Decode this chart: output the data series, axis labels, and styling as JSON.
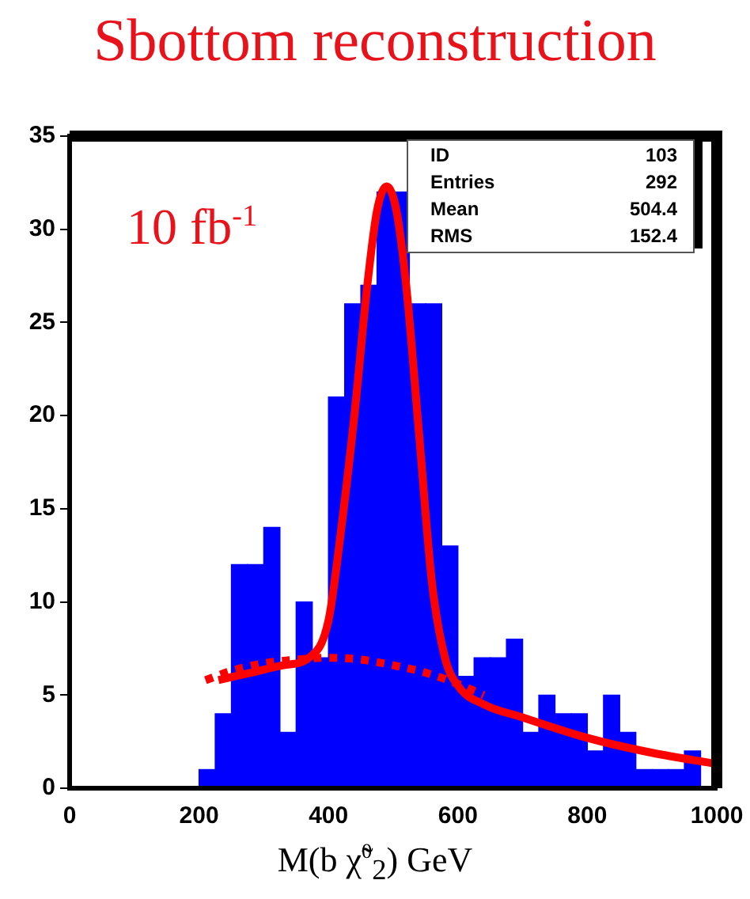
{
  "chart_data": {
    "type": "histogram",
    "title": "Sbottom reconstruction",
    "xlabel": "M(b χ̃$^{0}$$_{2}$) GeV",
    "bins": [
      200,
      225,
      250,
      275,
      300,
      325,
      350,
      375,
      400,
      425,
      450,
      475,
      500,
      525,
      550,
      575,
      600,
      625,
      650,
      675,
      700,
      725,
      750,
      775,
      800,
      825,
      850,
      875,
      900,
      925,
      950,
      975,
      1000
    ],
    "values": [
      1,
      4,
      12,
      12,
      14,
      3,
      10,
      7,
      21,
      26,
      27,
      32,
      32,
      26,
      26,
      13,
      6,
      7,
      7,
      8,
      3,
      5,
      4,
      4,
      2,
      5,
      3,
      1,
      1,
      1,
      2,
      0
    ],
    "color": "#0000ff",
    "series": [
      {
        "type": "line",
        "x": [
          230,
          280,
          330,
          370,
          400,
          420,
          440,
          460,
          475,
          490,
          505,
          520,
          540,
          560,
          580,
          600,
          640,
          700,
          800,
          900,
          1000
        ],
        "values": [
          5.8,
          6.2,
          6.6,
          7,
          9,
          14,
          20,
          27,
          31,
          32.3,
          31,
          27,
          19,
          11,
          7,
          5.5,
          4.5,
          3.8,
          2.7,
          1.9,
          1.3
        ],
        "color": "#ff0000",
        "line_style": "solid"
      },
      {
        "type": "line",
        "x": [
          210,
          250,
          300,
          350,
          400,
          450,
          500,
          550,
          600,
          640
        ],
        "values": [
          5.8,
          6.3,
          6.7,
          6.9,
          7,
          6.9,
          6.6,
          6.2,
          5.6,
          5
        ],
        "color": "#ff0000",
        "line_style": "dotted"
      }
    ],
    "xlim": [
      0,
      1000
    ],
    "xticks": [
      0,
      200,
      400,
      600,
      800,
      1000
    ],
    "ylim": [
      0,
      35
    ],
    "yticks": [
      0,
      5,
      10,
      15,
      20,
      25,
      30,
      35
    ],
    "grid": false,
    "legend": false,
    "annotations": [
      "10 fb$^{-1}$",
      "ID 103",
      "Entries 292",
      "Mean 504.4",
      "RMS 152.4"
    ]
  }
}
